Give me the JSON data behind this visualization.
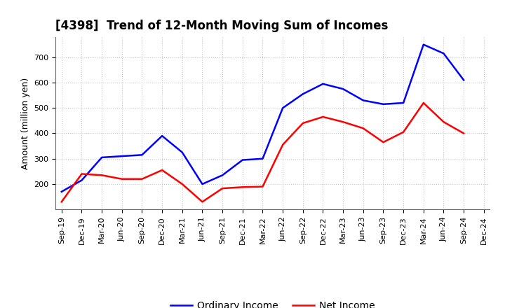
{
  "title": "[4398]  Trend of 12-Month Moving Sum of Incomes",
  "ylabel": "Amount (million yen)",
  "x_labels": [
    "Sep-19",
    "Dec-19",
    "Mar-20",
    "Jun-20",
    "Sep-20",
    "Dec-20",
    "Mar-21",
    "Jun-21",
    "Sep-21",
    "Dec-21",
    "Mar-22",
    "Jun-22",
    "Sep-22",
    "Dec-22",
    "Mar-23",
    "Jun-23",
    "Sep-23",
    "Dec-23",
    "Mar-24",
    "Jun-24",
    "Sep-24",
    "Dec-24"
  ],
  "ordinary_income": [
    170,
    215,
    305,
    310,
    315,
    390,
    325,
    200,
    235,
    295,
    300,
    500,
    555,
    595,
    575,
    530,
    515,
    520,
    750,
    715,
    610,
    null
  ],
  "net_income": [
    130,
    240,
    235,
    220,
    220,
    255,
    200,
    130,
    183,
    188,
    190,
    355,
    440,
    465,
    445,
    420,
    365,
    405,
    520,
    445,
    400,
    null
  ],
  "ordinary_color": "#0000FF",
  "net_color": "#FF0000",
  "ylim": [
    100,
    780
  ],
  "yticks": [
    200,
    300,
    400,
    500,
    600,
    700
  ],
  "grid_color": "#aaaaaa",
  "background_color": "#ffffff",
  "title_fontsize": 12,
  "axis_label_fontsize": 9,
  "tick_fontsize": 8,
  "legend_fontsize": 10,
  "line_width": 1.8
}
